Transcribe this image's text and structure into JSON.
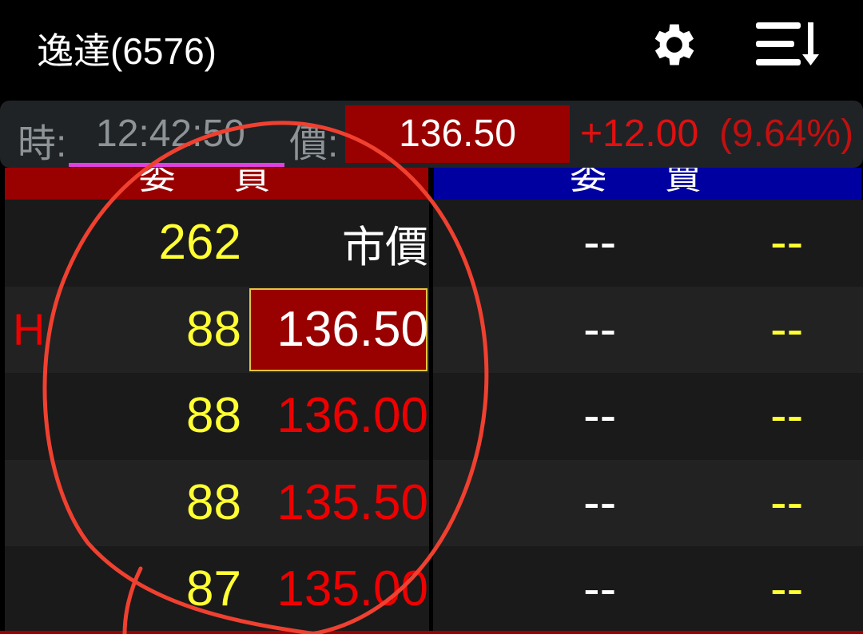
{
  "header": {
    "title": "逸達(6576)",
    "settings_icon": "gear-icon",
    "sort_icon": "sort-descending-icon"
  },
  "quote": {
    "time_label": "時:",
    "time": "12:42:50",
    "price_label": "價:",
    "price": "136.50",
    "change": "+12.00",
    "change_pct": "(9.64%)"
  },
  "columns": {
    "bid_header": "委 買",
    "ask_header": "委 賣",
    "bid_color": "#990000",
    "ask_color": "#0000a0"
  },
  "rows": [
    {
      "marker": "",
      "bid_vol": "262",
      "bid_price": "市價",
      "ask_price": "--",
      "ask_vol": "--"
    },
    {
      "marker": "H",
      "bid_vol": "88",
      "bid_price": "136.50",
      "ask_price": "--",
      "ask_vol": "--"
    },
    {
      "marker": "",
      "bid_vol": "88",
      "bid_price": "136.00",
      "ask_price": "--",
      "ask_vol": "--"
    },
    {
      "marker": "",
      "bid_vol": "88",
      "bid_price": "135.50",
      "ask_price": "--",
      "ask_vol": "--"
    },
    {
      "marker": "",
      "bid_vol": "87",
      "bid_price": "135.00",
      "ask_price": "--",
      "ask_vol": "--"
    }
  ]
}
